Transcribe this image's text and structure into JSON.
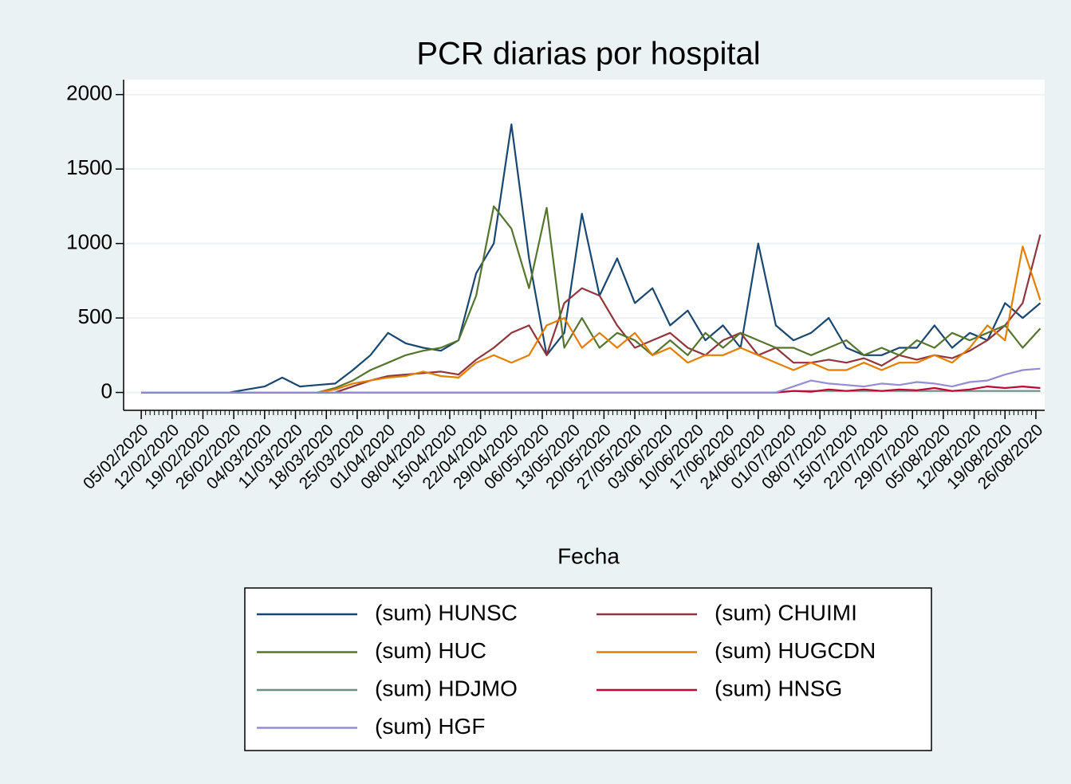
{
  "chart_data": {
    "type": "line",
    "title": "PCR diarias por hospital",
    "x_label": "Fecha",
    "x": [
      "05/02/2020",
      "09/02/2020",
      "13/02/2020",
      "17/02/2020",
      "21/02/2020",
      "25/02/2020",
      "29/02/2020",
      "04/03/2020",
      "08/03/2020",
      "12/03/2020",
      "16/03/2020",
      "20/03/2020",
      "24/03/2020",
      "28/03/2020",
      "01/04/2020",
      "05/04/2020",
      "09/04/2020",
      "13/04/2020",
      "17/04/2020",
      "21/04/2020",
      "25/04/2020",
      "29/04/2020",
      "03/05/2020",
      "07/05/2020",
      "11/05/2020",
      "15/05/2020",
      "19/05/2020",
      "23/05/2020",
      "27/05/2020",
      "31/05/2020",
      "04/06/2020",
      "08/06/2020",
      "12/06/2020",
      "16/06/2020",
      "20/06/2020",
      "24/06/2020",
      "28/06/2020",
      "02/07/2020",
      "06/07/2020",
      "10/07/2020",
      "14/07/2020",
      "18/07/2020",
      "22/07/2020",
      "26/07/2020",
      "30/07/2020",
      "03/08/2020",
      "07/08/2020",
      "11/08/2020",
      "15/08/2020",
      "19/08/2020",
      "23/08/2020",
      "27/08/2020"
    ],
    "series": [
      {
        "name": "(sum) HUNSC",
        "color": "#1a476f",
        "values": [
          0,
          0,
          0,
          0,
          0,
          0,
          20,
          40,
          100,
          40,
          50,
          60,
          150,
          250,
          400,
          330,
          300,
          280,
          350,
          800,
          1000,
          1800,
          900,
          250,
          400,
          1200,
          650,
          900,
          600,
          700,
          450,
          550,
          350,
          450,
          300,
          1000,
          450,
          350,
          400,
          500,
          300,
          250,
          250,
          300,
          300,
          450,
          300,
          400,
          350,
          600,
          500,
          600
        ]
      },
      {
        "name": "(sum) CHUIMI",
        "color": "#90353b",
        "values": [
          0,
          0,
          0,
          0,
          0,
          0,
          0,
          0,
          0,
          0,
          0,
          0,
          40,
          80,
          110,
          120,
          130,
          140,
          120,
          220,
          300,
          400,
          450,
          250,
          600,
          700,
          650,
          450,
          300,
          350,
          400,
          300,
          250,
          350,
          400,
          250,
          300,
          200,
          200,
          220,
          200,
          230,
          180,
          250,
          220,
          250,
          230,
          280,
          350,
          450,
          600,
          1060
        ]
      },
      {
        "name": "(sum) HUC",
        "color": "#55752f",
        "values": [
          0,
          0,
          0,
          0,
          0,
          0,
          0,
          0,
          0,
          0,
          0,
          30,
          80,
          150,
          200,
          250,
          280,
          300,
          350,
          650,
          1250,
          1100,
          700,
          1240,
          300,
          500,
          300,
          400,
          350,
          250,
          350,
          250,
          400,
          300,
          400,
          350,
          300,
          300,
          250,
          300,
          350,
          250,
          300,
          250,
          350,
          300,
          400,
          350,
          400,
          450,
          300,
          430
        ]
      },
      {
        "name": "(sum) HUGCDN",
        "color": "#e37e00",
        "values": [
          0,
          0,
          0,
          0,
          0,
          0,
          0,
          0,
          0,
          0,
          0,
          20,
          60,
          80,
          100,
          110,
          140,
          110,
          100,
          200,
          250,
          200,
          250,
          450,
          500,
          300,
          400,
          300,
          400,
          250,
          300,
          200,
          250,
          250,
          300,
          250,
          200,
          150,
          200,
          150,
          150,
          200,
          150,
          200,
          200,
          250,
          200,
          300,
          450,
          350,
          980,
          620
        ]
      },
      {
        "name": "(sum) HDJMO",
        "color": "#6e8e84",
        "values": [
          0,
          0,
          0,
          0,
          0,
          0,
          0,
          0,
          0,
          0,
          0,
          0,
          0,
          0,
          0,
          0,
          0,
          0,
          0,
          0,
          0,
          0,
          0,
          0,
          0,
          0,
          0,
          0,
          0,
          0,
          0,
          0,
          0,
          0,
          0,
          0,
          0,
          10,
          10,
          10,
          10,
          10,
          10,
          10,
          10,
          10,
          10,
          10,
          10,
          10,
          10,
          10
        ]
      },
      {
        "name": "(sum) HNSG",
        "color": "#c10534",
        "values": [
          0,
          0,
          0,
          0,
          0,
          0,
          0,
          0,
          0,
          0,
          0,
          0,
          0,
          0,
          0,
          0,
          0,
          0,
          0,
          0,
          0,
          0,
          0,
          0,
          0,
          0,
          0,
          0,
          0,
          0,
          0,
          0,
          0,
          0,
          0,
          0,
          0,
          10,
          5,
          20,
          10,
          20,
          10,
          20,
          15,
          30,
          10,
          20,
          40,
          30,
          40,
          30
        ]
      },
      {
        "name": "(sum) HGF",
        "color": "#938dd2",
        "values": [
          0,
          0,
          0,
          0,
          0,
          0,
          0,
          0,
          0,
          0,
          0,
          0,
          0,
          0,
          0,
          0,
          0,
          0,
          0,
          0,
          0,
          0,
          0,
          0,
          0,
          0,
          0,
          0,
          0,
          0,
          0,
          0,
          0,
          0,
          0,
          0,
          0,
          40,
          80,
          60,
          50,
          40,
          60,
          50,
          70,
          60,
          40,
          70,
          80,
          120,
          150,
          160
        ]
      }
    ],
    "xlim": [
      "01/02/2020",
      "28/08/2020"
    ],
    "xticks": [
      "05/02/2020",
      "12/02/2020",
      "19/02/2020",
      "26/02/2020",
      "04/03/2020",
      "11/03/2020",
      "18/03/2020",
      "25/03/2020",
      "01/04/2020",
      "08/04/2020",
      "15/04/2020",
      "22/04/2020",
      "29/04/2020",
      "06/05/2020",
      "13/05/2020",
      "20/05/2020",
      "27/05/2020",
      "03/06/2020",
      "10/06/2020",
      "17/06/2020",
      "24/06/2020",
      "01/07/2020",
      "08/07/2020",
      "15/07/2020",
      "22/07/2020",
      "29/07/2020",
      "05/08/2020",
      "12/08/2020",
      "19/08/2020",
      "26/08/2020"
    ],
    "ylim": [
      -120,
      2100
    ],
    "yticks": [
      0,
      500,
      1000,
      1500,
      2000
    ],
    "grid": true,
    "legend_columns": 2
  }
}
